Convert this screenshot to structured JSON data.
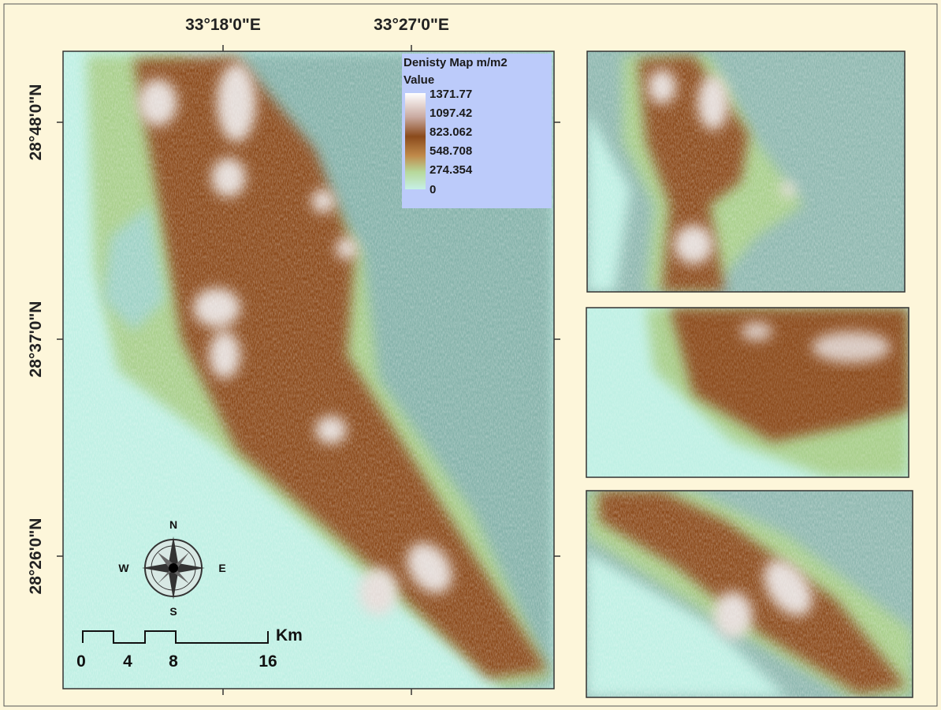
{
  "map": {
    "x_labels": [
      "33°18'0\"E",
      "33°27'0\"E"
    ],
    "y_labels": [
      "28°48'0\"N",
      "28°37'0\"N",
      "28°26'0\"N"
    ],
    "legend": {
      "title": "Denisty Map m/m2",
      "subtitle": "Value",
      "values": [
        1371.77,
        1097.42,
        823.062,
        548.708,
        274.354,
        0
      ]
    },
    "compass": {
      "north": "N",
      "south": "S",
      "east": "E",
      "west": "W"
    },
    "scale_bar": {
      "unit": "Km",
      "labels": [
        0,
        4,
        8,
        16
      ]
    }
  }
}
